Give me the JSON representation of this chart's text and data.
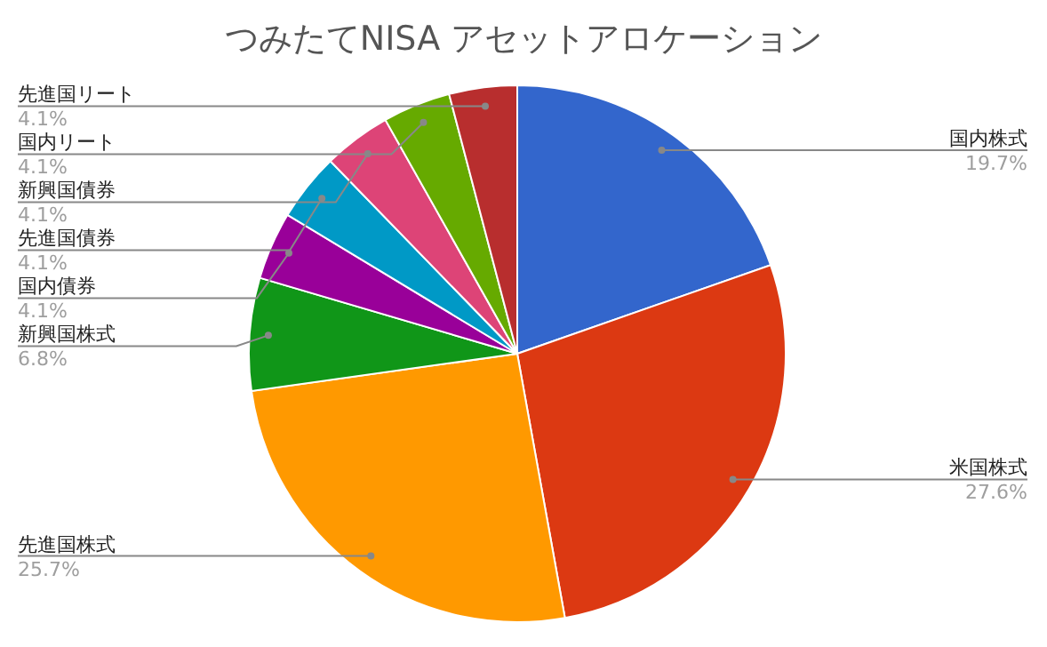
{
  "chart_data": {
    "type": "pie",
    "title": "つみたてNISA アセットアロケーション",
    "categories": [
      "国内株式",
      "米国株式",
      "先進国株式",
      "新興国株式",
      "国内債券",
      "先進国債券",
      "新興国債券",
      "国内リート",
      "先進国リート"
    ],
    "values": [
      19.7,
      27.6,
      25.7,
      6.8,
      4.1,
      4.1,
      4.1,
      4.1,
      4.1
    ],
    "value_labels": [
      "19.7%",
      "27.6%",
      "25.7%",
      "6.8%",
      "4.1%",
      "4.1%",
      "4.1%",
      "4.1%",
      "4.1%"
    ],
    "colors": [
      "#3366cc",
      "#dc3912",
      "#ff9900",
      "#109618",
      "#990099",
      "#0099c6",
      "#dd4477",
      "#66aa00",
      "#b82e2e"
    ]
  }
}
